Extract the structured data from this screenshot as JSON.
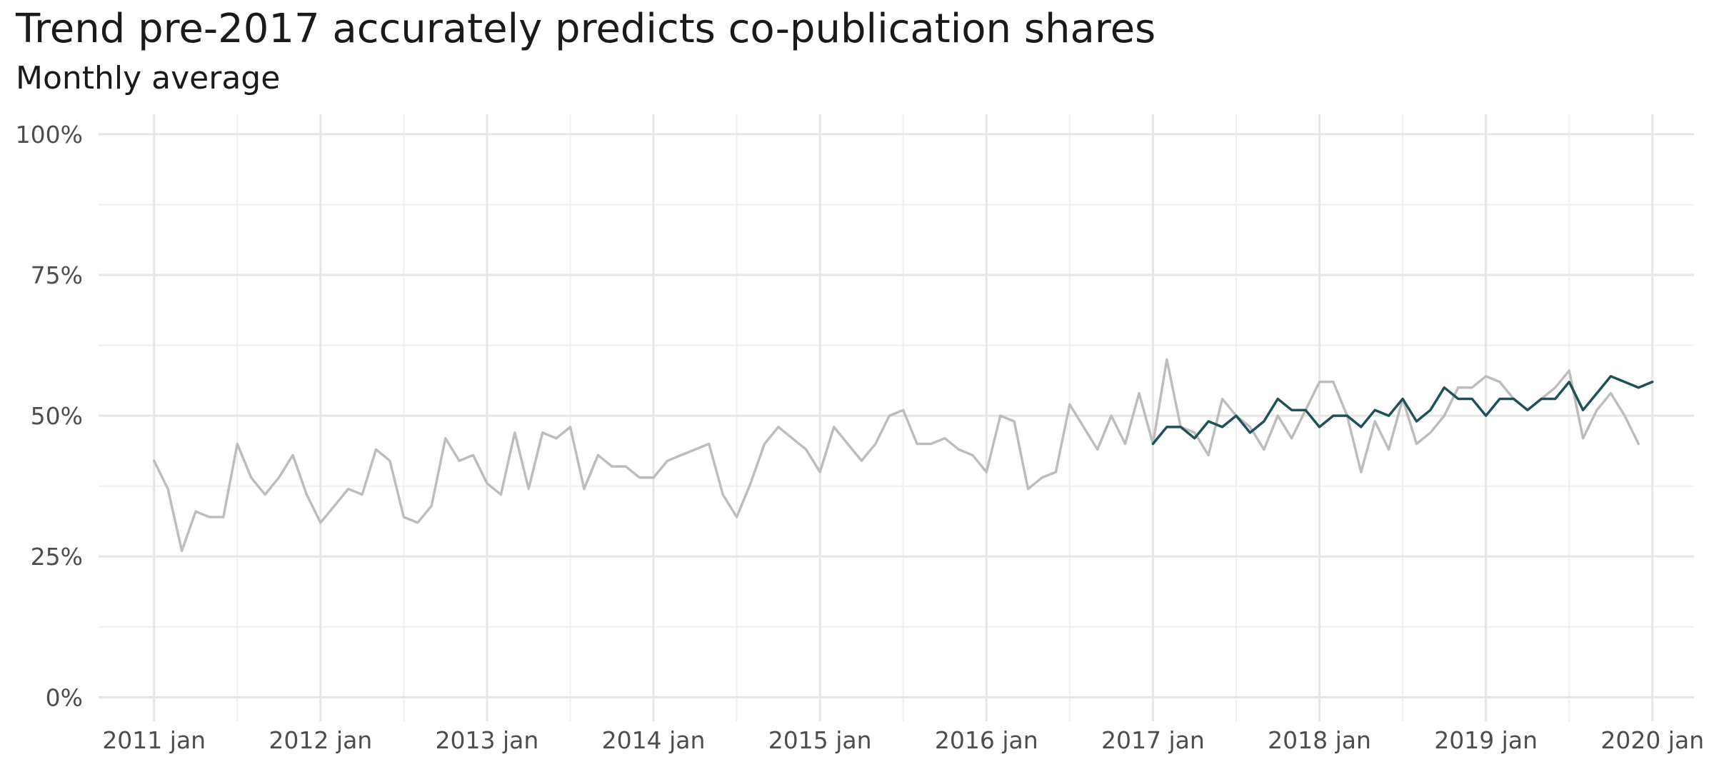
{
  "title": "Trend pre-2017 accurately predicts co-publication shares",
  "subtitle": "Monthly average",
  "colors": {
    "actual": "#bdbdbd",
    "predicted": "#1f5156",
    "grid": "#e6e6e6",
    "grid_minor": "#f0f0f0"
  },
  "chart_data": {
    "type": "line",
    "title": "Trend pre-2017 accurately predicts co-publication shares",
    "subtitle": "Monthly average",
    "xlabel": "",
    "ylabel": "",
    "x_range": [
      "2010-09",
      "2020-04"
    ],
    "ylim": [
      -0.03,
      1.01
    ],
    "grid": true,
    "legend": "none",
    "y_ticks": [
      {
        "value": 0,
        "label": "0%"
      },
      {
        "value": 0.25,
        "label": "25%"
      },
      {
        "value": 0.5,
        "label": "50%"
      },
      {
        "value": 0.75,
        "label": "75%"
      },
      {
        "value": 1.0,
        "label": "100%"
      }
    ],
    "x_ticks": [
      {
        "value": "2011-01",
        "label": "2011 jan"
      },
      {
        "value": "2012-01",
        "label": "2012 jan"
      },
      {
        "value": "2013-01",
        "label": "2013 jan"
      },
      {
        "value": "2014-01",
        "label": "2014 jan"
      },
      {
        "value": "2015-01",
        "label": "2015 jan"
      },
      {
        "value": "2016-01",
        "label": "2016 jan"
      },
      {
        "value": "2017-01",
        "label": "2017 jan"
      },
      {
        "value": "2018-01",
        "label": "2018 jan"
      },
      {
        "value": "2019-01",
        "label": "2019 jan"
      },
      {
        "value": "2020-01",
        "label": "2020 jan"
      }
    ],
    "series": [
      {
        "start": "2011-01",
        "color": "#bdbdbd",
        "values": [
          0.42,
          0.37,
          0.26,
          0.33,
          0.32,
          0.32,
          0.45,
          0.39,
          0.36,
          0.39,
          0.43,
          0.36,
          0.31,
          0.34,
          0.37,
          0.36,
          0.44,
          0.42,
          0.32,
          0.31,
          0.34,
          0.46,
          0.42,
          0.43,
          0.38,
          0.36,
          0.47,
          0.37,
          0.47,
          0.46,
          0.48,
          0.37,
          0.43,
          0.41,
          0.41,
          0.39,
          0.39,
          0.42,
          0.43,
          0.44,
          0.45,
          0.36,
          0.32,
          0.38,
          0.45,
          0.48,
          0.46,
          0.44,
          0.4,
          0.48,
          0.45,
          0.42,
          0.45,
          0.5,
          0.51,
          0.45,
          0.45,
          0.46,
          0.44,
          0.43,
          0.4,
          0.5,
          0.49,
          0.37,
          0.39,
          0.4,
          0.52,
          0.48,
          0.44,
          0.5,
          0.45,
          0.54,
          0.45,
          0.6,
          0.48,
          0.47,
          0.43,
          0.53,
          0.5,
          0.48,
          0.44,
          0.5,
          0.46,
          0.51,
          0.56,
          0.56,
          0.5,
          0.4,
          0.49,
          0.44,
          0.53,
          0.45,
          0.47,
          0.5,
          0.55,
          0.55,
          0.57,
          0.56,
          0.53,
          0.51,
          0.53,
          0.55,
          0.58,
          0.46,
          0.51,
          0.54,
          0.5,
          0.45
        ]
      },
      {
        "start": "2017-01",
        "color": "#1f5156",
        "values": [
          0.45,
          0.48,
          0.48,
          0.46,
          0.49,
          0.48,
          0.5,
          0.47,
          0.49,
          0.53,
          0.51,
          0.51,
          0.48,
          0.5,
          0.5,
          0.48,
          0.51,
          0.5,
          0.53,
          0.49,
          0.51,
          0.55,
          0.53,
          0.53,
          0.5,
          0.53,
          0.53,
          0.51,
          0.53,
          0.53,
          0.56,
          0.51,
          0.54,
          0.57,
          0.56,
          0.55,
          0.56
        ]
      }
    ]
  }
}
